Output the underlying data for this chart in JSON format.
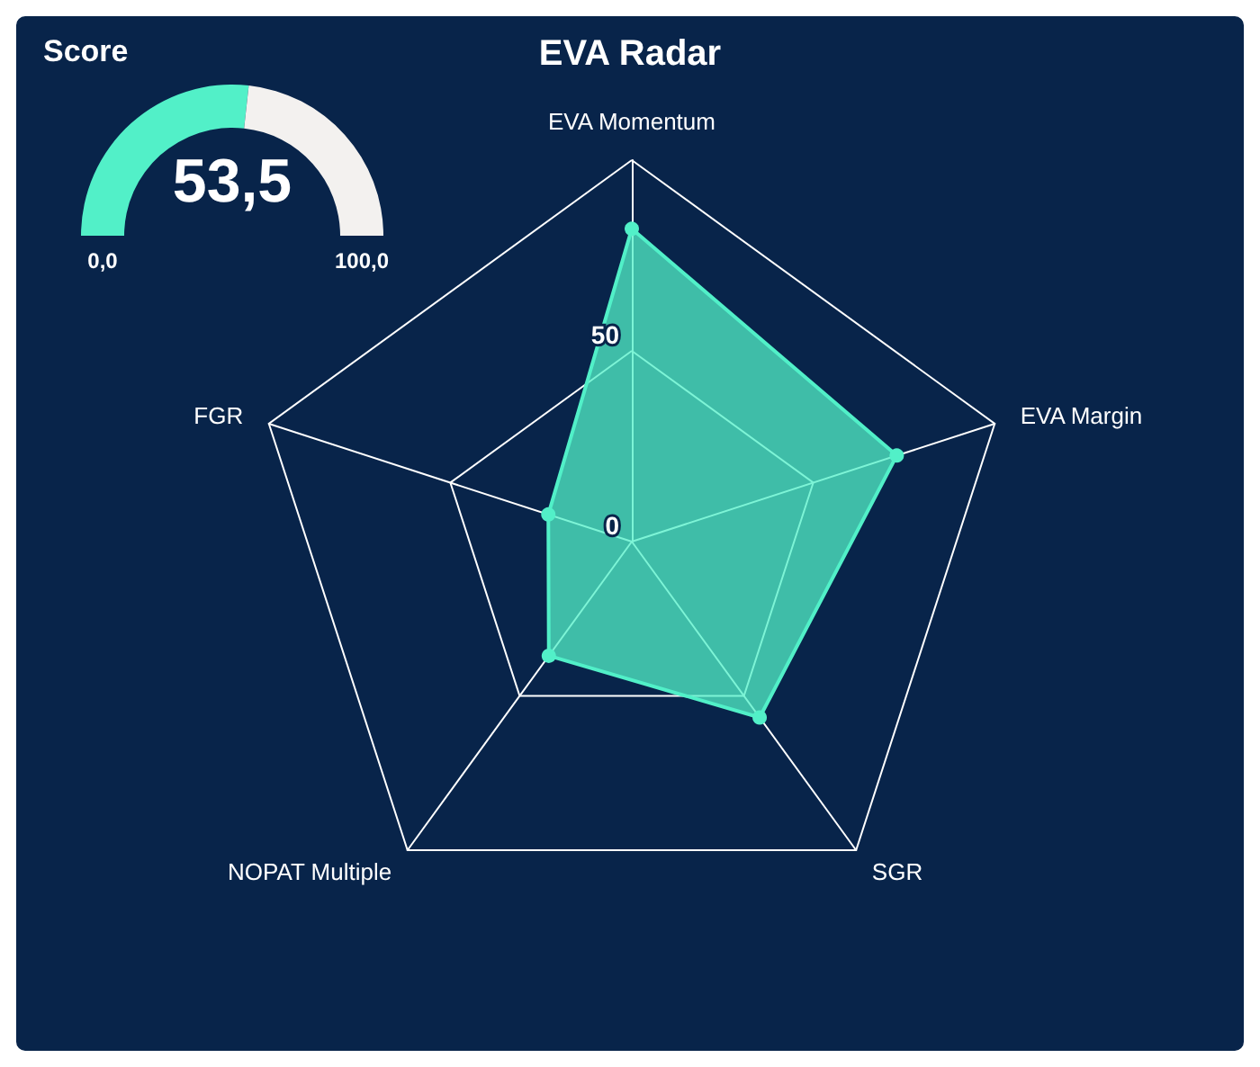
{
  "chart_data": [
    {
      "type": "donut",
      "title": "Score",
      "categories": [
        null,
        null
      ],
      "values": [
        53.5,
        46.5
      ],
      "value_labels": [
        "53,5",
        null
      ],
      "colors": [
        "#52f0c8",
        "#f3f1ef"
      ],
      "annotations": [
        "0,0",
        "100,0"
      ]
    },
    {
      "type": "radar",
      "title": "EVA Radar",
      "categories": [
        "EVA Momentum",
        "EVA Margin",
        "SGR",
        "NOPAT Multiple",
        "FGR"
      ],
      "ylim": [
        0,
        100
      ],
      "yticks": [
        0,
        50
      ],
      "series": [
        {
          "color": "#52f0c8",
          "values": [
            82,
            73,
            57,
            37,
            23
          ]
        }
      ],
      "marker": "circle"
    }
  ]
}
